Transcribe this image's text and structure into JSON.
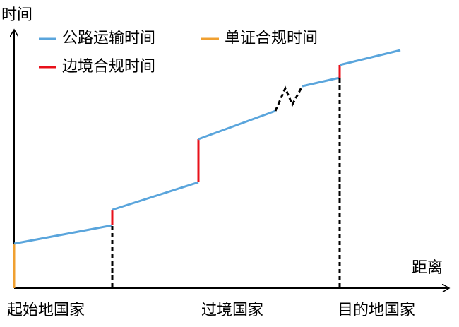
{
  "axes": {
    "y_label": "时间",
    "x_label": "距离"
  },
  "legend": [
    {
      "label": "公路运输时间"
    },
    {
      "label": "单证合规时间"
    },
    {
      "label": "边境合规时间"
    }
  ],
  "x_labels": [
    "起始地国家",
    "过境国家",
    "目的地国家"
  ]
}
